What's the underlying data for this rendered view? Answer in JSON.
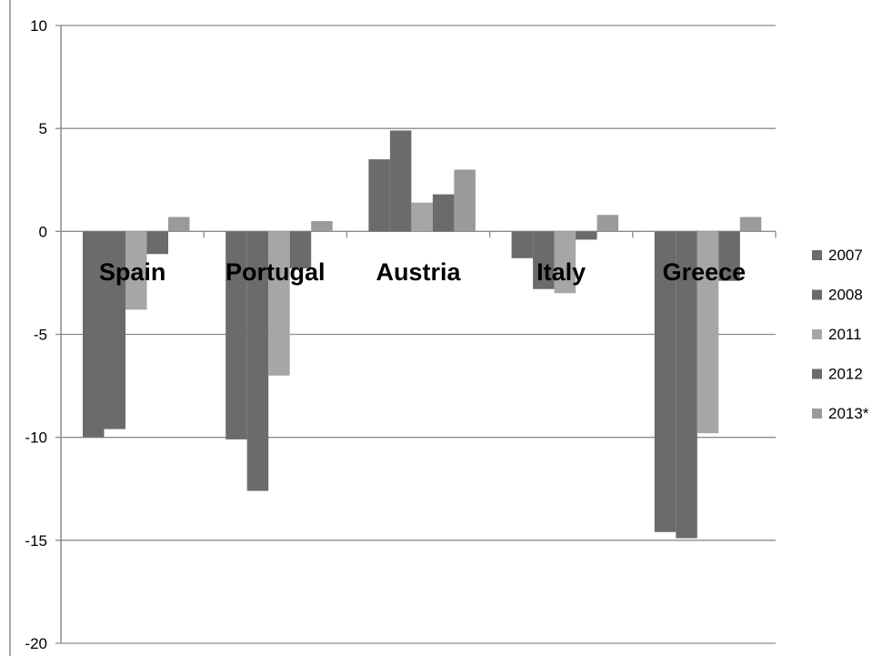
{
  "chart_data": {
    "type": "bar",
    "categories": [
      "Spain",
      "Portugal",
      "Austria",
      "Italy",
      "Greece"
    ],
    "series": [
      {
        "name": "2007",
        "values": [
          -10.0,
          -10.1,
          3.5,
          -1.3,
          -14.6
        ],
        "color": "#6b6b6b"
      },
      {
        "name": "2008",
        "values": [
          -9.6,
          -12.6,
          4.9,
          -2.8,
          -14.9
        ],
        "color": "#6b6b6b"
      },
      {
        "name": "2011",
        "values": [
          -3.8,
          -7.0,
          1.4,
          -3.0,
          -9.8
        ],
        "color": "#a6a6a6"
      },
      {
        "name": "2012",
        "values": [
          -1.1,
          -1.8,
          1.8,
          -0.4,
          -2.4
        ],
        "color": "#6b6b6b"
      },
      {
        "name": "2013*",
        "values": [
          0.7,
          0.5,
          3.0,
          0.8,
          0.7
        ],
        "color": "#9a9a9a"
      }
    ],
    "yticks": [
      "10",
      "5",
      "0",
      "-5",
      "-10",
      "-15",
      "-20"
    ],
    "ylim": [
      -20,
      10
    ],
    "grid": true,
    "legend_position": "right"
  }
}
